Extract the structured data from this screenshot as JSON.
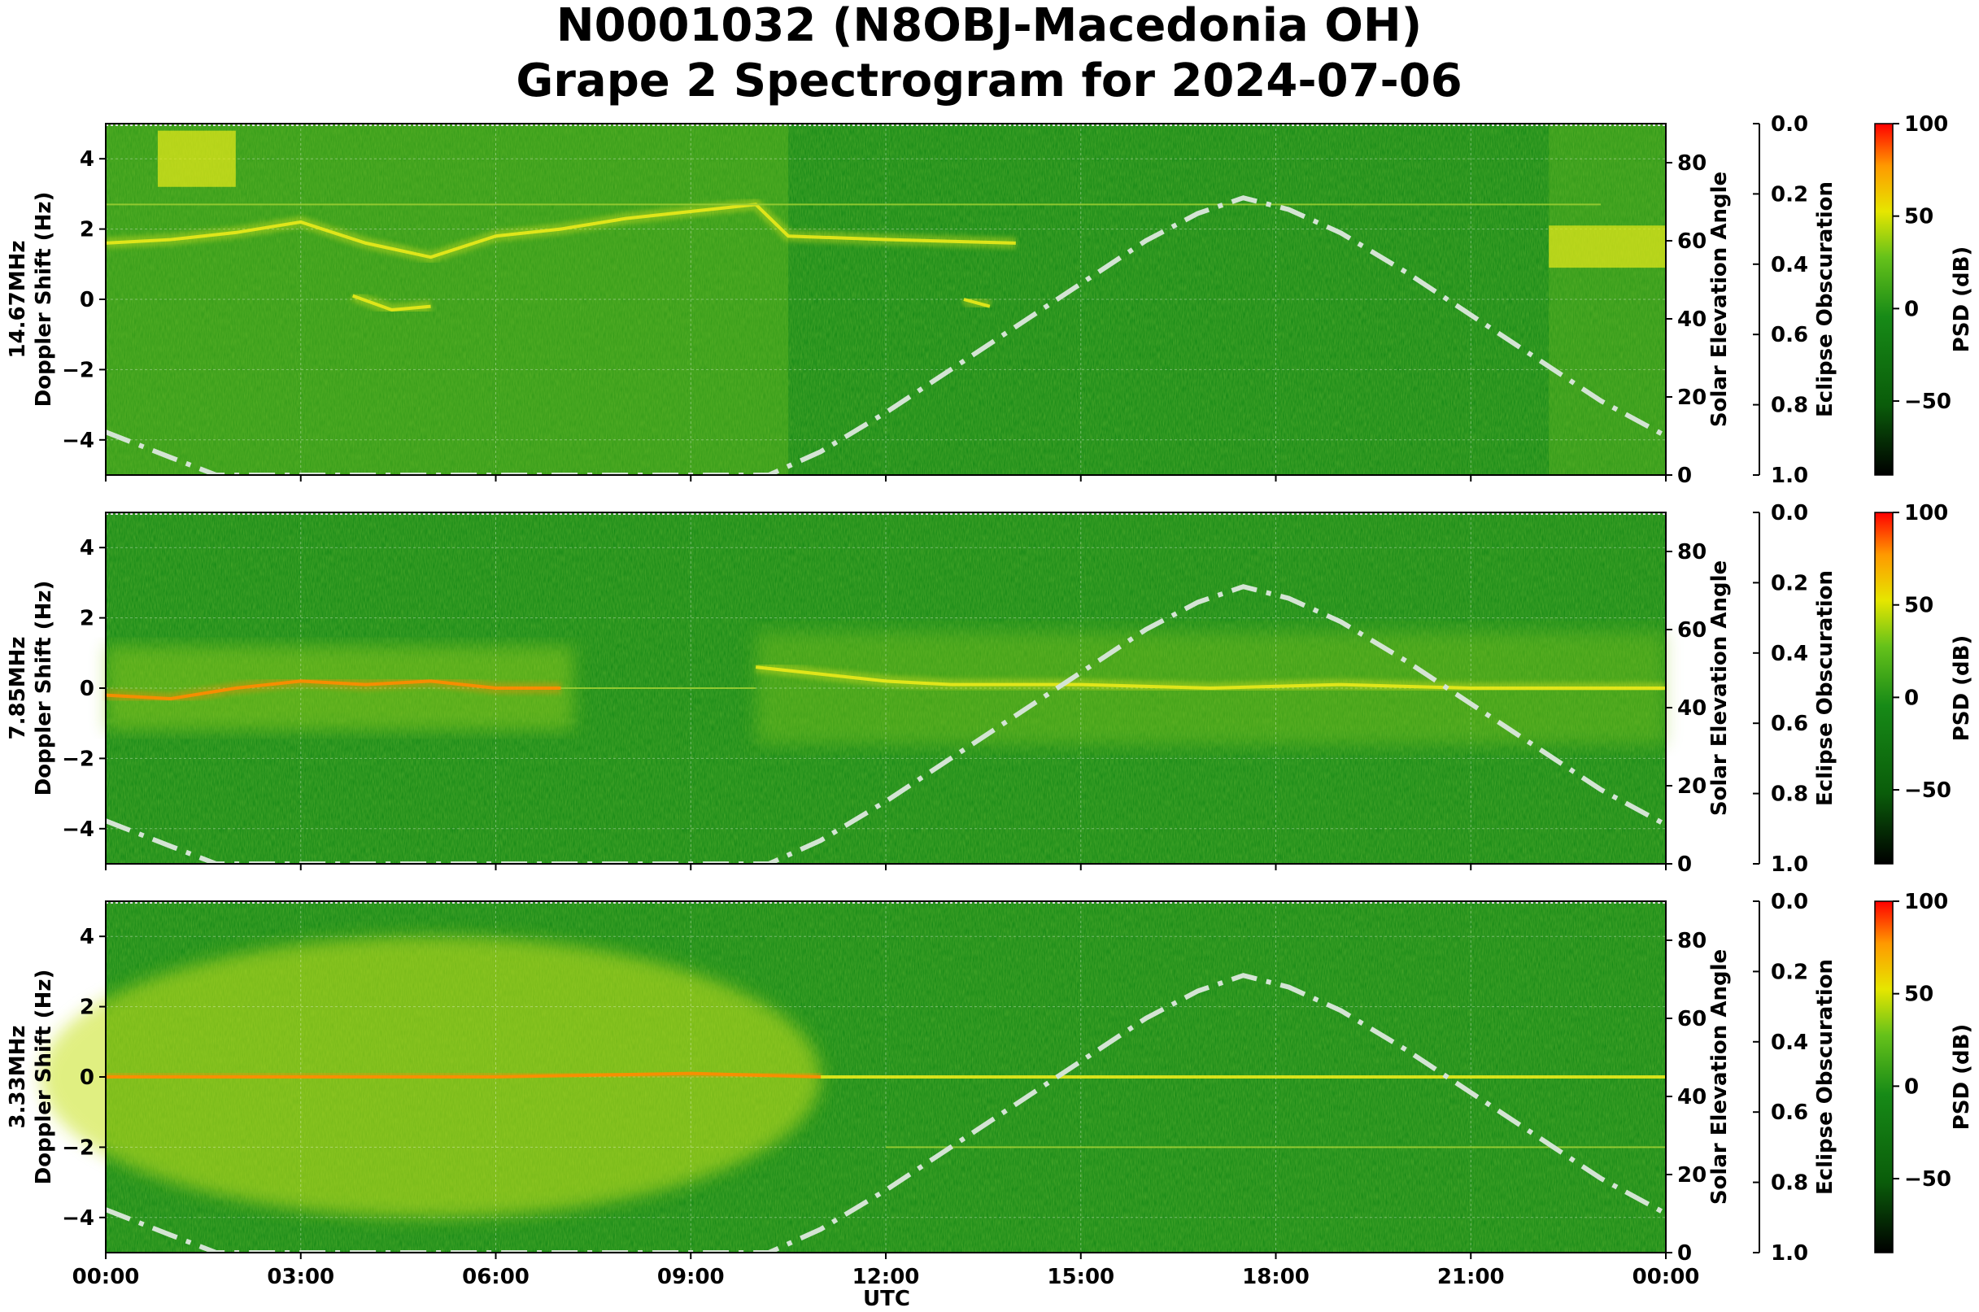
{
  "title_line1": "N0001032 (N8OBJ-Macedonia OH)",
  "title_line2": "Grape 2 Spectrogram for 2024-07-06",
  "chart_data": {
    "type": "heatmap",
    "xlabel": "UTC",
    "x_ticks": [
      "00:00",
      "03:00",
      "06:00",
      "09:00",
      "12:00",
      "15:00",
      "18:00",
      "21:00",
      "00:00"
    ],
    "x_range_hours": [
      0,
      24
    ],
    "y_ticks": [
      4,
      2,
      0,
      -2,
      -4
    ],
    "y_tick_labels": [
      "4",
      "2",
      "0",
      "−2",
      "−4"
    ],
    "ylim": [
      -5,
      5
    ],
    "right_axis": {
      "label": "Solar Elevation Angle",
      "ticks": [
        80,
        60,
        40,
        20,
        0
      ],
      "ylim": [
        0,
        90
      ]
    },
    "eclipse_axis": {
      "label": "Eclipse Obscuration",
      "ticks": [
        "0.0",
        "0.2",
        "0.4",
        "0.6",
        "0.8",
        "1.0"
      ]
    },
    "colorbar": {
      "label": "PSD (dB)",
      "ticks": [
        "100",
        "50",
        "0",
        "−50"
      ],
      "tick_values": [
        100,
        50,
        0,
        -50
      ],
      "range": [
        -90,
        100
      ],
      "colors": [
        "#000000",
        "#0a5c0a",
        "#178a17",
        "#66c21a",
        "#e6e600",
        "#ff9900",
        "#ff0000"
      ]
    },
    "grid": true,
    "solar_elevation_curve": {
      "style": "dash-dot",
      "color": "#d4e4d4",
      "points_hours_degrees": [
        [
          0,
          11
        ],
        [
          1,
          4.5
        ],
        [
          1.7,
          0
        ],
        [
          10.2,
          0
        ],
        [
          11,
          6
        ],
        [
          12,
          16
        ],
        [
          13,
          27
        ],
        [
          14,
          38
        ],
        [
          15,
          49
        ],
        [
          16,
          60
        ],
        [
          16.8,
          67
        ],
        [
          17.5,
          71
        ],
        [
          18.2,
          68
        ],
        [
          19,
          62
        ],
        [
          20,
          52
        ],
        [
          21,
          41
        ],
        [
          22,
          30
        ],
        [
          23,
          19
        ],
        [
          24,
          10
        ]
      ]
    },
    "panels": [
      {
        "name": "14.67MHz",
        "ylabel_line1": "14.67MHz",
        "ylabel_line2": "Doppler Shift (Hz)",
        "traces": [
          {
            "points": [
              [
                0,
                1.6
              ],
              [
                1,
                1.7
              ],
              [
                2,
                1.9
              ],
              [
                3,
                2.2
              ],
              [
                4,
                1.6
              ],
              [
                5,
                1.2
              ],
              [
                6,
                1.8
              ],
              [
                7,
                2.0
              ],
              [
                8,
                2.3
              ],
              [
                9,
                2.5
              ],
              [
                10,
                2.7
              ],
              [
                10.5,
                1.8
              ],
              [
                12,
                1.7
              ],
              [
                14,
                1.6
              ]
            ],
            "level": "yellow"
          },
          {
            "points": [
              [
                0.8,
                4.0
              ],
              [
                2.0,
                4.0
              ]
            ],
            "level": "yellow",
            "block_height": 1.6
          },
          {
            "points": [
              [
                3.8,
                0.1
              ],
              [
                4.4,
                -0.3
              ],
              [
                5,
                -0.2
              ]
            ],
            "level": "yellow"
          },
          {
            "points": [
              [
                13.2,
                0
              ],
              [
                13.6,
                -0.2
              ]
            ],
            "level": "yellow"
          },
          {
            "points": [
              [
                0,
                2.7
              ],
              [
                23,
                2.7
              ]
            ],
            "level": "faint"
          },
          {
            "points": [
              [
                22.2,
                1.5
              ],
              [
                24,
                1.5
              ]
            ],
            "level": "yellow",
            "block_height": 1.2
          }
        ]
      },
      {
        "name": "7.85MHz",
        "ylabel_line1": "7.85MHz",
        "ylabel_line2": "Doppler Shift (Hz)",
        "traces": [
          {
            "points": [
              [
                0,
                -0.2
              ],
              [
                1,
                -0.3
              ],
              [
                2,
                0
              ],
              [
                3,
                0.2
              ],
              [
                4,
                0.1
              ],
              [
                5,
                0.2
              ],
              [
                6,
                0
              ],
              [
                7,
                0
              ]
            ],
            "level": "orange"
          },
          {
            "points": [
              [
                10,
                0.6
              ],
              [
                11,
                0.4
              ],
              [
                12,
                0.2
              ],
              [
                13,
                0.1
              ],
              [
                15,
                0.1
              ],
              [
                17,
                0
              ],
              [
                19,
                0.1
              ],
              [
                21,
                0
              ],
              [
                24,
                0
              ]
            ],
            "level": "yellow"
          },
          {
            "points": [
              [
                7,
                0
              ],
              [
                10,
                0
              ]
            ],
            "level": "faint"
          }
        ]
      },
      {
        "name": "3.33MHz",
        "ylabel_line1": "3.33MHz",
        "ylabel_line2": "Doppler Shift (Hz)",
        "traces": [
          {
            "points": [
              [
                0,
                0
              ],
              [
                3,
                0
              ],
              [
                6,
                0
              ],
              [
                9,
                0.1
              ],
              [
                11,
                0
              ]
            ],
            "level": "orange"
          },
          {
            "points": [
              [
                11,
                0
              ],
              [
                24,
                0
              ]
            ],
            "level": "yellow"
          },
          {
            "points": [
              [
                12,
                -2
              ],
              [
                16,
                -2
              ],
              [
                24,
                -2
              ]
            ],
            "level": "faint"
          }
        ]
      }
    ]
  }
}
